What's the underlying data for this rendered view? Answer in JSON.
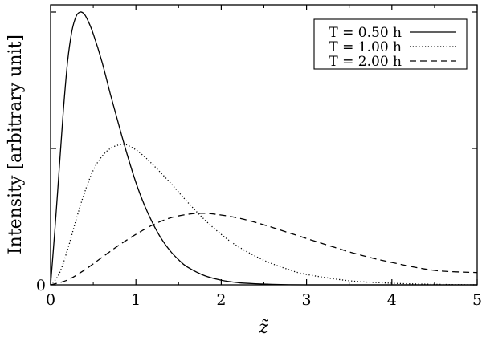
{
  "chart_data": {
    "type": "line",
    "title": "",
    "xlabel": "z̃",
    "ylabel": "Intensity [arbitrary unit]",
    "xlim": [
      0,
      5
    ],
    "ylim": [
      0,
      1.0
    ],
    "x_ticks": [
      "0",
      "1",
      "2",
      "3",
      "4",
      "5"
    ],
    "y_ticks": [
      {
        "value": 0,
        "label": "0"
      },
      {
        "value": 0.5,
        "label": ""
      },
      {
        "value": 1.0,
        "label": ""
      }
    ],
    "grid": false,
    "legend_position": "top-right",
    "series": [
      {
        "name": "T = 0.50 h",
        "style": "solid",
        "x": [
          0,
          0.05,
          0.1,
          0.15,
          0.2,
          0.25,
          0.3,
          0.35,
          0.4,
          0.45,
          0.5,
          0.6,
          0.7,
          0.8,
          0.9,
          1.0,
          1.1,
          1.2,
          1.3,
          1.4,
          1.5,
          1.6,
          1.8,
          2.0,
          2.2,
          2.4,
          2.7,
          3.0,
          3.5,
          4.0,
          4.5,
          5.0
        ],
        "y": [
          0,
          0.2,
          0.42,
          0.64,
          0.82,
          0.93,
          0.985,
          1.0,
          0.99,
          0.96,
          0.92,
          0.82,
          0.7,
          0.585,
          0.475,
          0.375,
          0.292,
          0.224,
          0.168,
          0.125,
          0.092,
          0.066,
          0.034,
          0.017,
          0.008,
          0.004,
          0.001,
          0.0,
          0.0,
          0.0,
          0.0,
          0.0
        ]
      },
      {
        "name": "T = 1.00 h",
        "style": "dotted",
        "x": [
          0,
          0.1,
          0.2,
          0.3,
          0.4,
          0.5,
          0.6,
          0.7,
          0.8,
          0.86,
          0.9,
          1.0,
          1.1,
          1.2,
          1.4,
          1.6,
          1.8,
          2.0,
          2.2,
          2.5,
          2.8,
          3.0,
          3.5,
          4.0,
          4.5,
          5.0
        ],
        "y": [
          0,
          0.04,
          0.13,
          0.24,
          0.34,
          0.42,
          0.47,
          0.5,
          0.513,
          0.515,
          0.512,
          0.495,
          0.47,
          0.44,
          0.375,
          0.305,
          0.24,
          0.185,
          0.14,
          0.09,
          0.055,
          0.038,
          0.015,
          0.006,
          0.002,
          0.0
        ]
      },
      {
        "name": "T = 2.00 h",
        "style": "dashed",
        "x": [
          0,
          0.2,
          0.4,
          0.6,
          0.8,
          1.0,
          1.2,
          1.4,
          1.6,
          1.75,
          1.9,
          2.2,
          2.5,
          2.8,
          3.2,
          3.6,
          4.0,
          4.5,
          5.0
        ],
        "y": [
          0,
          0.018,
          0.055,
          0.1,
          0.145,
          0.185,
          0.22,
          0.245,
          0.258,
          0.262,
          0.26,
          0.245,
          0.22,
          0.19,
          0.15,
          0.112,
          0.082,
          0.053,
          0.045
        ]
      }
    ]
  }
}
